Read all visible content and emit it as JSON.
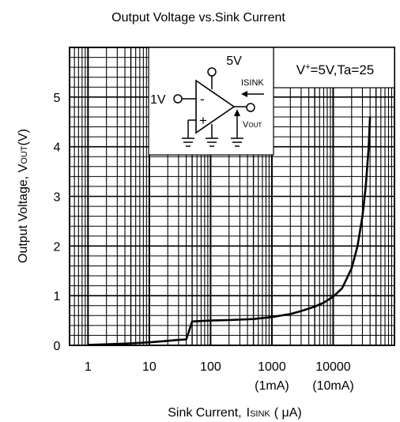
{
  "chart_data": {
    "type": "line",
    "title": "Output Voltage vs.Sink Current",
    "xlabel": {
      "main": "Sink Current,",
      "symbol": "I",
      "symbol_sub": "SINK",
      "unit": "( μA)"
    },
    "ylabel": {
      "main": "Output Voltage, V",
      "sub": "OUT",
      "unit": "(V)"
    },
    "x_scale": "log",
    "xlim": [
      0.5,
      100000
    ],
    "ylim": [
      0,
      6
    ],
    "x_ticks": [
      {
        "value": 1,
        "label": "1",
        "sublabel": ""
      },
      {
        "value": 10,
        "label": "10",
        "sublabel": ""
      },
      {
        "value": 100,
        "label": "100",
        "sublabel": ""
      },
      {
        "value": 1000,
        "label": "1000",
        "sublabel": "(1mA)"
      },
      {
        "value": 10000,
        "label": "10000",
        "sublabel": "(10mA)"
      }
    ],
    "y_ticks": [
      0,
      1,
      2,
      3,
      4,
      5
    ],
    "grid": true,
    "series": [
      {
        "x": [
          1,
          2,
          5,
          10,
          20,
          30,
          40,
          50,
          70,
          100,
          200,
          500,
          1000,
          2000,
          3000,
          5000,
          7000,
          10000,
          14000,
          20000,
          25000,
          30000,
          34000,
          38000,
          40000
        ],
        "y": [
          0.01,
          0.02,
          0.04,
          0.06,
          0.09,
          0.11,
          0.12,
          0.48,
          0.49,
          0.5,
          0.51,
          0.53,
          0.57,
          0.63,
          0.69,
          0.78,
          0.86,
          0.98,
          1.15,
          1.55,
          2.0,
          2.6,
          3.2,
          4.0,
          4.6
        ]
      }
    ],
    "annotation": {
      "condition_main": "V",
      "condition_sup": "+",
      "condition_rest": "=5V,Ta=25"
    },
    "inset": {
      "supply_label": "5V",
      "input_label": "1V",
      "minus_sign": "-",
      "plus_sign": "+",
      "isink_label": "ISINK",
      "vout_main": "V",
      "vout_sub": "OUT"
    }
  }
}
